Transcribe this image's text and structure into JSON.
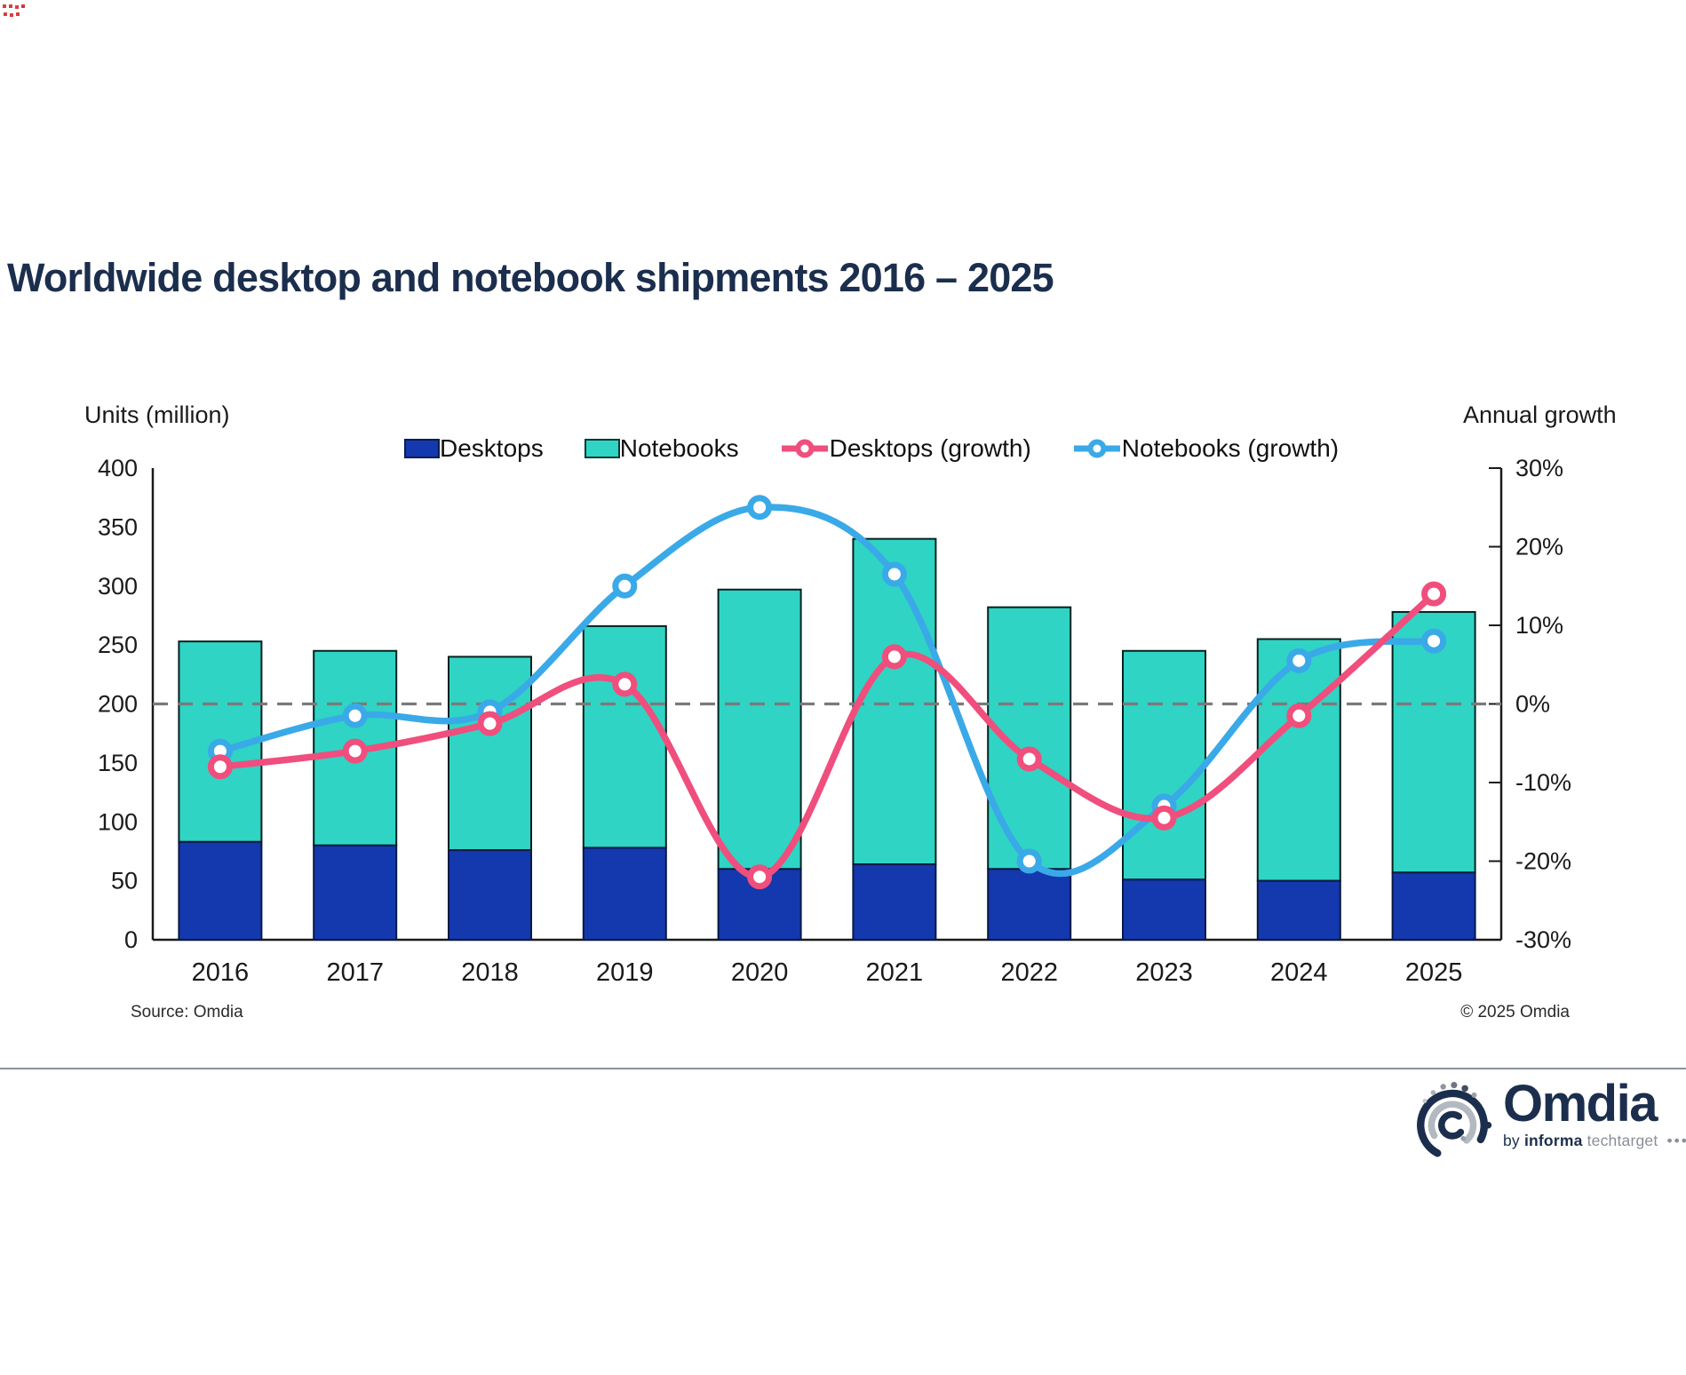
{
  "title": "Worldwide desktop and notebook shipments 2016 – 2025",
  "footer": {
    "source": "Source: Omdia",
    "copyright": "© 2025 Omdia"
  },
  "logo": {
    "name": "Omdia",
    "byline_prefix": "by",
    "byline_bold": "informa",
    "byline_suffix": "techtarget",
    "dots": "•••"
  },
  "colors": {
    "desktops_bar": "#1438ae",
    "desktops_bar_border": "#0a1d52",
    "notebooks_bar": "#2fd4c4",
    "notebooks_bar_border": "#063b36",
    "desktops_growth_line": "#f04e7d",
    "notebooks_growth_line": "#3aa9e8",
    "marker_fill": "#ffffff",
    "zero_line": "#7a7a7a",
    "axis_line": "#1a1a1a",
    "tick_text": "#1a1a1a",
    "title_text": "#1b2e4d",
    "logo_navy": "#1b2e4d",
    "logo_gray": "#9aa0a8"
  },
  "chart_data": {
    "type": "bar",
    "subtype": "stacked-column-with-growth-lines",
    "title": "Worldwide desktop and notebook shipments 2016 – 2025",
    "categories": [
      "2016",
      "2017",
      "2018",
      "2019",
      "2020",
      "2021",
      "2022",
      "2023",
      "2024",
      "2025"
    ],
    "series": [
      {
        "name": "Desktops",
        "kind": "bar",
        "stack": "units",
        "axis": "left",
        "values": [
          83,
          80,
          76,
          78,
          60,
          64,
          60,
          51,
          50,
          57
        ]
      },
      {
        "name": "Notebooks",
        "kind": "bar",
        "stack": "units",
        "axis": "left",
        "values": [
          170,
          165,
          164,
          188,
          237,
          276,
          222,
          194,
          205,
          221
        ]
      },
      {
        "name": "Desktops (growth)",
        "kind": "line",
        "axis": "right",
        "unit": "%",
        "values": [
          -8,
          -6,
          -2.5,
          2.5,
          -22,
          6,
          -7,
          -14.5,
          -1.5,
          14
        ]
      },
      {
        "name": "Notebooks (growth)",
        "kind": "line",
        "axis": "right",
        "unit": "%",
        "values": [
          -6,
          -1.5,
          -1,
          15,
          25,
          16.5,
          -20,
          -13,
          5.5,
          8
        ]
      }
    ],
    "stacked_totals": [
      253,
      245,
      240,
      266,
      297,
      340,
      282,
      245,
      255,
      278
    ],
    "left_axis": {
      "title": "Units (million)",
      "min": 0,
      "max": 400,
      "step": 50
    },
    "right_axis": {
      "title": "Annual growth",
      "min": -30,
      "max": 30,
      "step": 10,
      "suffix": "%"
    },
    "zero_growth_gridline": true,
    "grid": "off",
    "legend_position": "top"
  }
}
